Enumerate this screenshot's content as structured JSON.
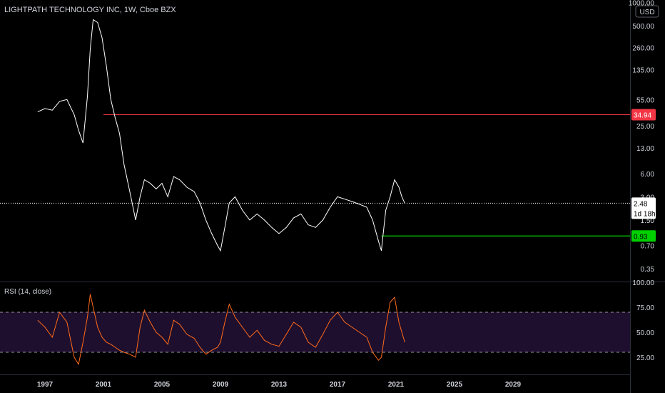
{
  "header": {
    "title": "LIGHTPATH TECHNOLOGY INC, 1W, Cboe BZX"
  },
  "currency_badge": "USD",
  "rsi_panel": {
    "title": "RSI (14, close)"
  },
  "colors": {
    "background": "#000000",
    "price_line": "#ffffff",
    "resistance": "#f23645",
    "support": "#00d000",
    "rsi_line": "#ff6a1a",
    "rsi_band": "#1f0f2e",
    "axis_text": "#d1d4dc"
  },
  "chart_data": [
    {
      "type": "line",
      "name": "price",
      "yscale": "log",
      "y_ticks": [
        0.35,
        0.7,
        1.5,
        3.0,
        6.0,
        13.0,
        25.0,
        55.0,
        135.0,
        260.0,
        500.0,
        1000.0
      ],
      "y_tick_labels": [
        "0.35",
        "0.70",
        "1.50",
        "3.00",
        "6.00",
        "13.00",
        "25.00",
        "55.00",
        "135.00",
        "260.00",
        "500.00",
        "1000.00"
      ],
      "x_ticks": [
        1997,
        2001,
        2005,
        2009,
        2013,
        2017,
        2021,
        2025,
        2029
      ],
      "x": [
        1996.5,
        1997.0,
        1997.5,
        1998.0,
        1998.5,
        1999.0,
        1999.3,
        1999.6,
        1999.9,
        2000.1,
        2000.3,
        2000.6,
        2000.9,
        2001.2,
        2001.5,
        2001.8,
        2002.1,
        2002.4,
        2002.8,
        2003.2,
        2003.5,
        2003.8,
        2004.2,
        2004.6,
        2005.0,
        2005.4,
        2005.8,
        2006.2,
        2006.7,
        2007.2,
        2007.6,
        2008.0,
        2008.4,
        2008.8,
        2009.0,
        2009.3,
        2009.6,
        2010.0,
        2010.5,
        2011.0,
        2011.5,
        2012.0,
        2012.5,
        2013.0,
        2013.5,
        2014.0,
        2014.5,
        2015.0,
        2015.5,
        2016.0,
        2016.5,
        2017.0,
        2017.5,
        2018.0,
        2018.5,
        2019.0,
        2019.4,
        2019.8,
        2020.0,
        2020.3,
        2020.6,
        2020.9,
        2021.2,
        2021.4,
        2021.6
      ],
      "y": [
        38,
        42,
        40,
        52,
        55,
        35,
        22,
        15,
        60,
        250,
        600,
        550,
        350,
        150,
        55,
        32,
        20,
        8,
        3.5,
        1.5,
        3.0,
        5.0,
        4.5,
        3.8,
        4.5,
        3.0,
        5.5,
        5.0,
        4.0,
        3.5,
        2.5,
        1.5,
        1.0,
        0.7,
        0.6,
        1.2,
        2.5,
        3.0,
        2.0,
        1.5,
        1.8,
        1.5,
        1.2,
        1.0,
        1.2,
        1.6,
        1.8,
        1.3,
        1.2,
        1.5,
        2.2,
        3.0,
        2.8,
        2.6,
        2.4,
        2.2,
        1.5,
        0.8,
        0.6,
        2.0,
        3.0,
        5.0,
        4.0,
        3.0,
        2.48
      ],
      "last_value": "2.48",
      "countdown": "1d 18h",
      "horizontal_lines": [
        {
          "name": "resistance",
          "value": 34.94,
          "label": "34.94",
          "x_start": 2001.0
        },
        {
          "name": "support",
          "value": 0.93,
          "label": "0.93",
          "x_start": 2020.0
        }
      ]
    },
    {
      "type": "line",
      "name": "RSI (14, close)",
      "ylim": [
        0,
        100
      ],
      "y_ticks": [
        25,
        50,
        75,
        100
      ],
      "y_tick_labels": [
        "25.00",
        "50.00",
        "75.00",
        "100.00"
      ],
      "bands": [
        30,
        70
      ],
      "x": [
        1996.5,
        1997.0,
        1997.5,
        1998.0,
        1998.5,
        1999.0,
        1999.3,
        1999.6,
        1999.9,
        2000.1,
        2000.3,
        2000.6,
        2000.9,
        2001.2,
        2001.5,
        2001.8,
        2002.1,
        2002.4,
        2002.8,
        2003.2,
        2003.5,
        2003.8,
        2004.2,
        2004.6,
        2005.0,
        2005.4,
        2005.8,
        2006.2,
        2006.7,
        2007.2,
        2007.6,
        2008.0,
        2008.4,
        2008.8,
        2009.0,
        2009.3,
        2009.6,
        2010.0,
        2010.5,
        2011.0,
        2011.5,
        2012.0,
        2012.5,
        2013.0,
        2013.5,
        2014.0,
        2014.5,
        2015.0,
        2015.5,
        2016.0,
        2016.5,
        2017.0,
        2017.5,
        2018.0,
        2018.5,
        2019.0,
        2019.4,
        2019.8,
        2020.0,
        2020.3,
        2020.6,
        2020.9,
        2021.2,
        2021.4,
        2021.6
      ],
      "y": [
        62,
        55,
        45,
        70,
        60,
        25,
        18,
        40,
        65,
        88,
        75,
        55,
        45,
        40,
        38,
        35,
        32,
        30,
        28,
        25,
        55,
        72,
        60,
        50,
        45,
        38,
        62,
        58,
        48,
        44,
        35,
        28,
        32,
        35,
        40,
        60,
        78,
        65,
        55,
        45,
        52,
        42,
        38,
        36,
        48,
        60,
        55,
        40,
        35,
        48,
        62,
        70,
        60,
        55,
        50,
        45,
        30,
        22,
        25,
        55,
        80,
        85,
        60,
        50,
        40
      ]
    }
  ]
}
